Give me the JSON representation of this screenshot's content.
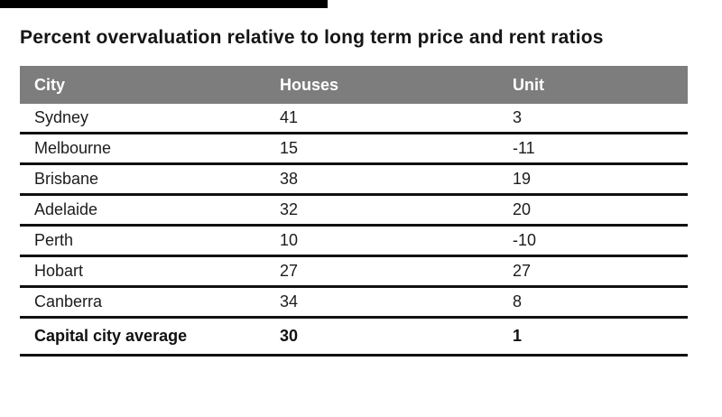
{
  "title": "Percent overvaluation relative to long term price and rent ratios",
  "decor": {
    "top_bar_color": "#000000"
  },
  "table": {
    "header_bg": "#7d7d7d",
    "header_text_color": "#ffffff",
    "border_color": "#111111",
    "columns": [
      "City",
      "Houses",
      "Unit"
    ],
    "rows": [
      {
        "city": "Sydney",
        "houses": "41",
        "unit": "3"
      },
      {
        "city": "Melbourne",
        "houses": "15",
        "unit": "-11"
      },
      {
        "city": "Brisbane",
        "houses": "38",
        "unit": "19"
      },
      {
        "city": "Adelaide",
        "houses": "32",
        "unit": "20"
      },
      {
        "city": "Perth",
        "houses": "10",
        "unit": "-10"
      },
      {
        "city": "Hobart",
        "houses": "27",
        "unit": "27"
      },
      {
        "city": "Canberra",
        "houses": "34",
        "unit": "8"
      },
      {
        "city": "Capital city average",
        "houses": "30",
        "unit": "1"
      }
    ]
  },
  "chart_data": {
    "type": "table",
    "title": "Percent overvaluation relative to long term price and rent ratios",
    "columns": [
      "City",
      "Houses",
      "Unit"
    ],
    "categories": [
      "Sydney",
      "Melbourne",
      "Brisbane",
      "Adelaide",
      "Perth",
      "Hobart",
      "Canberra",
      "Capital city average"
    ],
    "series": [
      {
        "name": "Houses",
        "values": [
          41,
          15,
          38,
          32,
          10,
          27,
          34,
          30
        ]
      },
      {
        "name": "Unit",
        "values": [
          3,
          -11,
          19,
          20,
          -10,
          27,
          8,
          1
        ]
      }
    ]
  }
}
